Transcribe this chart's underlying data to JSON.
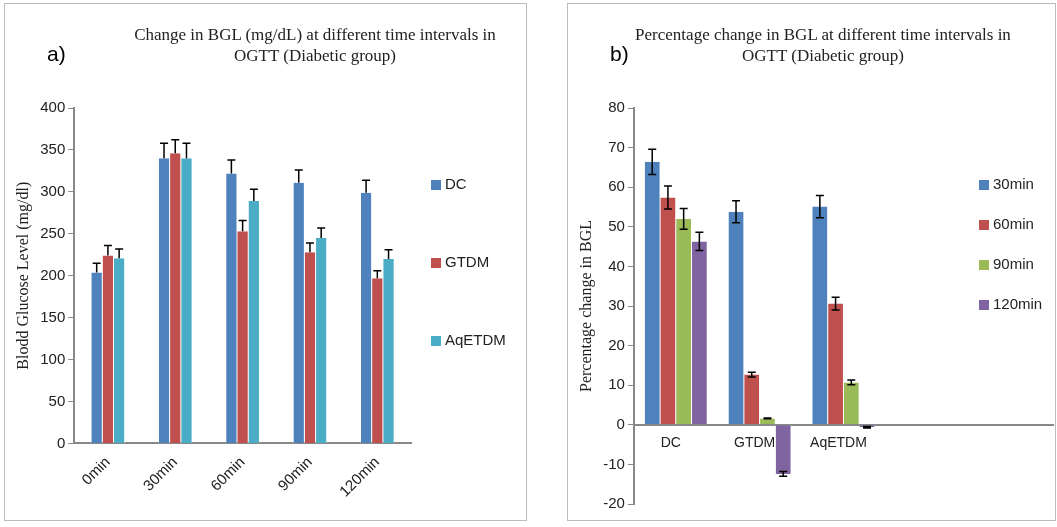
{
  "chart_data": [
    {
      "type": "bar",
      "title": "Change in BGL (mg/dL) at different time intervals in OGTT (Diabetic group)",
      "ylabel": "Blodd Glucose Level (mg/dl)",
      "annotations": [
        "a)"
      ],
      "categories": [
        "0min",
        "30min",
        "60min",
        "90min",
        "120min"
      ],
      "ylim": [
        0,
        400
      ],
      "yticks": [
        0,
        50,
        100,
        150,
        200,
        250,
        300,
        350,
        400
      ],
      "legend": "right",
      "series": [
        {
          "name": "DC",
          "color": "#4f81bd",
          "values": [
            204,
            340,
            322,
            311,
            299
          ],
          "errors": [
            [
              204,
              215
            ],
            [
              340,
              358
            ],
            [
              322,
              338
            ],
            [
              311,
              326
            ],
            [
              299,
              314
            ]
          ]
        },
        {
          "name": "GTDM",
          "color": "#c0504d",
          "values": [
            224,
            346,
            253,
            228,
            197
          ],
          "errors": [
            [
              224,
              236
            ],
            [
              346,
              362
            ],
            [
              253,
              266
            ],
            [
              228,
              239
            ],
            [
              197,
              206
            ]
          ]
        },
        {
          "name": "AqETDM",
          "color": "#4bacc6",
          "values": [
            221,
            340,
            289,
            245,
            220
          ],
          "errors": [
            [
              221,
              232
            ],
            [
              340,
              358
            ],
            [
              289,
              303
            ],
            [
              245,
              257
            ],
            [
              220,
              231
            ]
          ]
        }
      ]
    },
    {
      "type": "bar",
      "title": "Percentage change in BGL at different time intervals in OGTT (Diabetic group)",
      "ylabel": "Percentage change in BGL",
      "annotations": [
        "b)"
      ],
      "categories": [
        "DC",
        "GTDM",
        "AqETDM",
        null,
        null
      ],
      "ylim": [
        -20,
        80
      ],
      "yticks": [
        -20,
        -10,
        0,
        10,
        20,
        30,
        40,
        50,
        60,
        70,
        80
      ],
      "legend": "right",
      "series": [
        {
          "name": "30min",
          "color": "#4f81bd",
          "values": [
            66.4,
            53.8,
            55.1,
            null,
            null
          ],
          "errors": [
            3.2,
            2.8,
            2.8,
            null,
            null
          ]
        },
        {
          "name": "60min",
          "color": "#c0504d",
          "values": [
            57.4,
            12.7,
            30.6,
            null,
            null
          ],
          "errors": [
            2.9,
            0.6,
            1.6,
            null,
            null
          ]
        },
        {
          "name": "90min",
          "color": "#9bbb59",
          "values": [
            52.0,
            1.6,
            10.7,
            null,
            null
          ],
          "errors": [
            2.6,
            0.1,
            0.6,
            null,
            null
          ]
        },
        {
          "name": "120min",
          "color": "#8064a2",
          "values": [
            46.3,
            -12.4,
            -0.6,
            null,
            null
          ],
          "errors": [
            2.3,
            0.6,
            0.2,
            null,
            null
          ]
        }
      ]
    }
  ]
}
